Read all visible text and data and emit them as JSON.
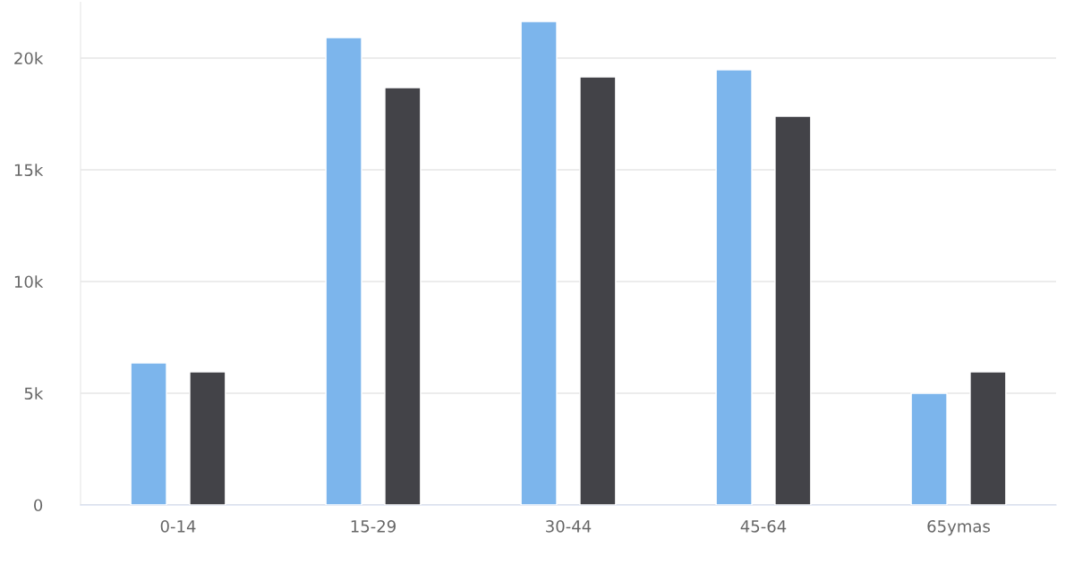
{
  "chart_data": {
    "type": "bar",
    "categories": [
      "0-14",
      "15-29",
      "30-44",
      "45-64",
      "65ymas"
    ],
    "series": [
      {
        "color": "#7cb5ec",
        "values": [
          6360,
          20920,
          21640,
          19480,
          5000
        ]
      },
      {
        "color": "#434348",
        "values": [
          5960,
          18680,
          19160,
          17400,
          5960
        ]
      }
    ],
    "ylim": [
      0,
      22500
    ],
    "yticks": [
      0,
      {
        "value": 5000,
        "label": "5k"
      },
      {
        "value": 10000,
        "label": "10k"
      },
      {
        "value": 15000,
        "label": "15k"
      },
      {
        "value": 20000,
        "label": "20k"
      }
    ],
    "grid": "y"
  }
}
